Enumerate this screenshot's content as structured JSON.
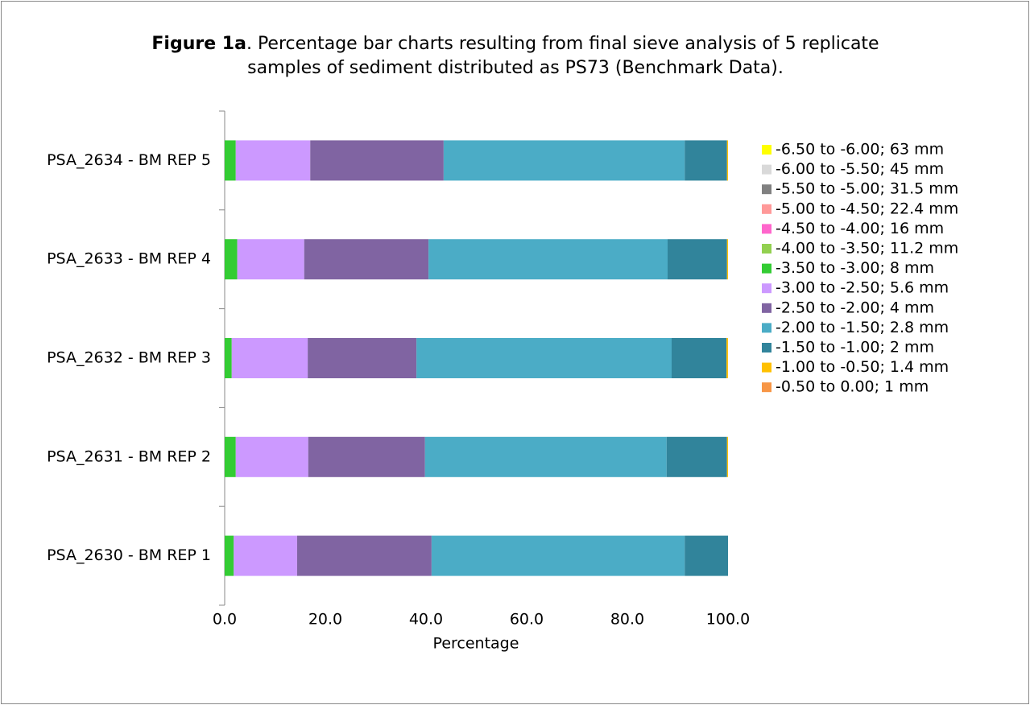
{
  "chart_data": {
    "type": "stacked-barh",
    "title_bold": "Figure 1a",
    "title": ".  Percentage bar charts resulting from final sieve analysis of 5 replicate samples of sediment distributed as PS73 (Benchmark Data).",
    "xlabel": "Percentage",
    "categories": [
      "PSA_2630 - BM REP 1",
      "PSA_2631 - BM REP 2",
      "PSA_2632 - BM REP 3",
      "PSA_2633 - BM REP 4",
      "PSA_2634 - BM REP 5"
    ],
    "series": [
      {
        "name": "-6.50 to -6.00; 63 mm",
        "color": "#FFFF00",
        "values": [
          0,
          0,
          0,
          0,
          0
        ]
      },
      {
        "name": "-6.00 to -5.50; 45 mm",
        "color": "#D9D9D9",
        "values": [
          0,
          0,
          0,
          0,
          0
        ]
      },
      {
        "name": "-5.50 to -5.00; 31.5 mm",
        "color": "#808080",
        "values": [
          0,
          0,
          0,
          0,
          0
        ]
      },
      {
        "name": "-5.00 to -4.50; 22.4 mm",
        "color": "#FF9999",
        "values": [
          0,
          0,
          0,
          0,
          0
        ]
      },
      {
        "name": "-4.50 to -4.00; 16 mm",
        "color": "#FF66CC",
        "values": [
          0,
          0,
          0,
          0,
          0
        ]
      },
      {
        "name": "-4.00 to -3.50; 11.2 mm",
        "color": "#92D050",
        "values": [
          0,
          0,
          0,
          0,
          0
        ]
      },
      {
        "name": "-3.50 to -3.00; 8 mm",
        "color": "#33CC33",
        "values": [
          1.8,
          2.2,
          1.4,
          2.5,
          2.2
        ]
      },
      {
        "name": "-3.00 to -2.50; 5.6 mm",
        "color": "#CC99FF",
        "values": [
          12.6,
          14.4,
          15.1,
          13.3,
          14.8
        ]
      },
      {
        "name": "-2.50 to -2.00; 4 mm",
        "color": "#8064A2",
        "values": [
          26.7,
          23.2,
          21.6,
          24.7,
          26.5
        ]
      },
      {
        "name": "-2.00 to -1.50; 2.8 mm",
        "color": "#4BACC6",
        "values": [
          50.3,
          48.0,
          50.7,
          47.5,
          47.9
        ]
      },
      {
        "name": "-1.50 to -1.00; 2 mm",
        "color": "#31849B",
        "values": [
          8.6,
          12.0,
          10.9,
          11.8,
          8.4
        ]
      },
      {
        "name": "-1.00 to -0.50; 1.4 mm",
        "color": "#FFC000",
        "values": [
          0,
          0.2,
          0.3,
          0.2,
          0.2
        ]
      },
      {
        "name": "-0.50 to 0.00; 1 mm",
        "color": "#F79646",
        "values": [
          0,
          0,
          0,
          0,
          0
        ]
      }
    ],
    "xlim": [
      0,
      100
    ],
    "xticks": [
      {
        "value": 0,
        "label": "0.0"
      },
      {
        "value": 20,
        "label": "20.0"
      },
      {
        "value": 40,
        "label": "40.0"
      },
      {
        "value": 60,
        "label": "60.0"
      },
      {
        "value": 80,
        "label": "80.0"
      },
      {
        "value": 100,
        "label": "100.0"
      }
    ],
    "legend": "right"
  }
}
